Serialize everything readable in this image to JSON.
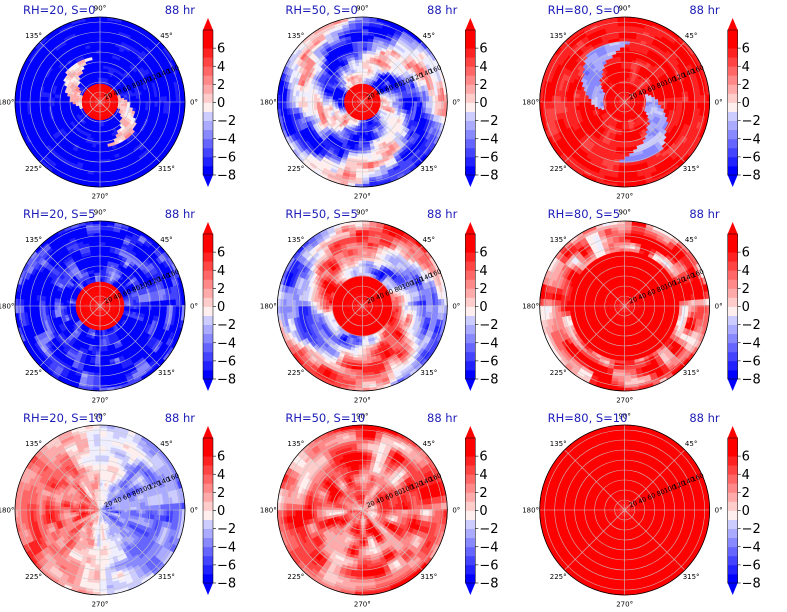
{
  "chart_data": {
    "type": "heatmap",
    "projection": "polar",
    "panels": [
      {
        "label": "RH=20, S=0",
        "time": "88 hr",
        "pattern": "spiral-neg"
      },
      {
        "label": "RH=50, S=0",
        "time": "88 hr",
        "pattern": "spiral-mixed"
      },
      {
        "label": "RH=80, S=0",
        "time": "88 hr",
        "pattern": "spiral-pos"
      },
      {
        "label": "RH=20, S=5",
        "time": "88 hr",
        "pattern": "core-neg"
      },
      {
        "label": "RH=50, S=5",
        "time": "88 hr",
        "pattern": "core-mixed"
      },
      {
        "label": "RH=80, S=5",
        "time": "88 hr",
        "pattern": "mostly-pos"
      },
      {
        "label": "RH=20, S=10",
        "time": "88 hr",
        "pattern": "split-weak"
      },
      {
        "label": "RH=50, S=10",
        "time": "88 hr",
        "pattern": "mostly-pos-weak"
      },
      {
        "label": "RH=80, S=10",
        "time": "88 hr",
        "pattern": "all-pos"
      }
    ],
    "theta_labels": [
      "0°",
      "45°",
      "90°",
      "135°",
      "180°",
      "225°",
      "270°",
      "315°"
    ],
    "radial_ticks": [
      "20",
      "40",
      "60",
      "80",
      "100",
      "120",
      "140",
      "160"
    ],
    "rmax": 170,
    "colorbar": {
      "ticks": [
        "6",
        "4",
        "2",
        "0",
        "−2",
        "−4",
        "−6",
        "−8"
      ],
      "levels": [
        -8,
        -7,
        -6,
        -5,
        -4,
        -3,
        -2,
        -1,
        0,
        1,
        2,
        3,
        4,
        5,
        6,
        7
      ],
      "vmin": -8,
      "vmax": 7,
      "extend": "both",
      "cmap": "bwr"
    },
    "grid": true
  },
  "colors": {
    "negative": "#0000ff",
    "neutral": "#ffffff",
    "positive": "#ff0000",
    "title": "#1c1cb8",
    "grid": "#c8c8c8"
  }
}
